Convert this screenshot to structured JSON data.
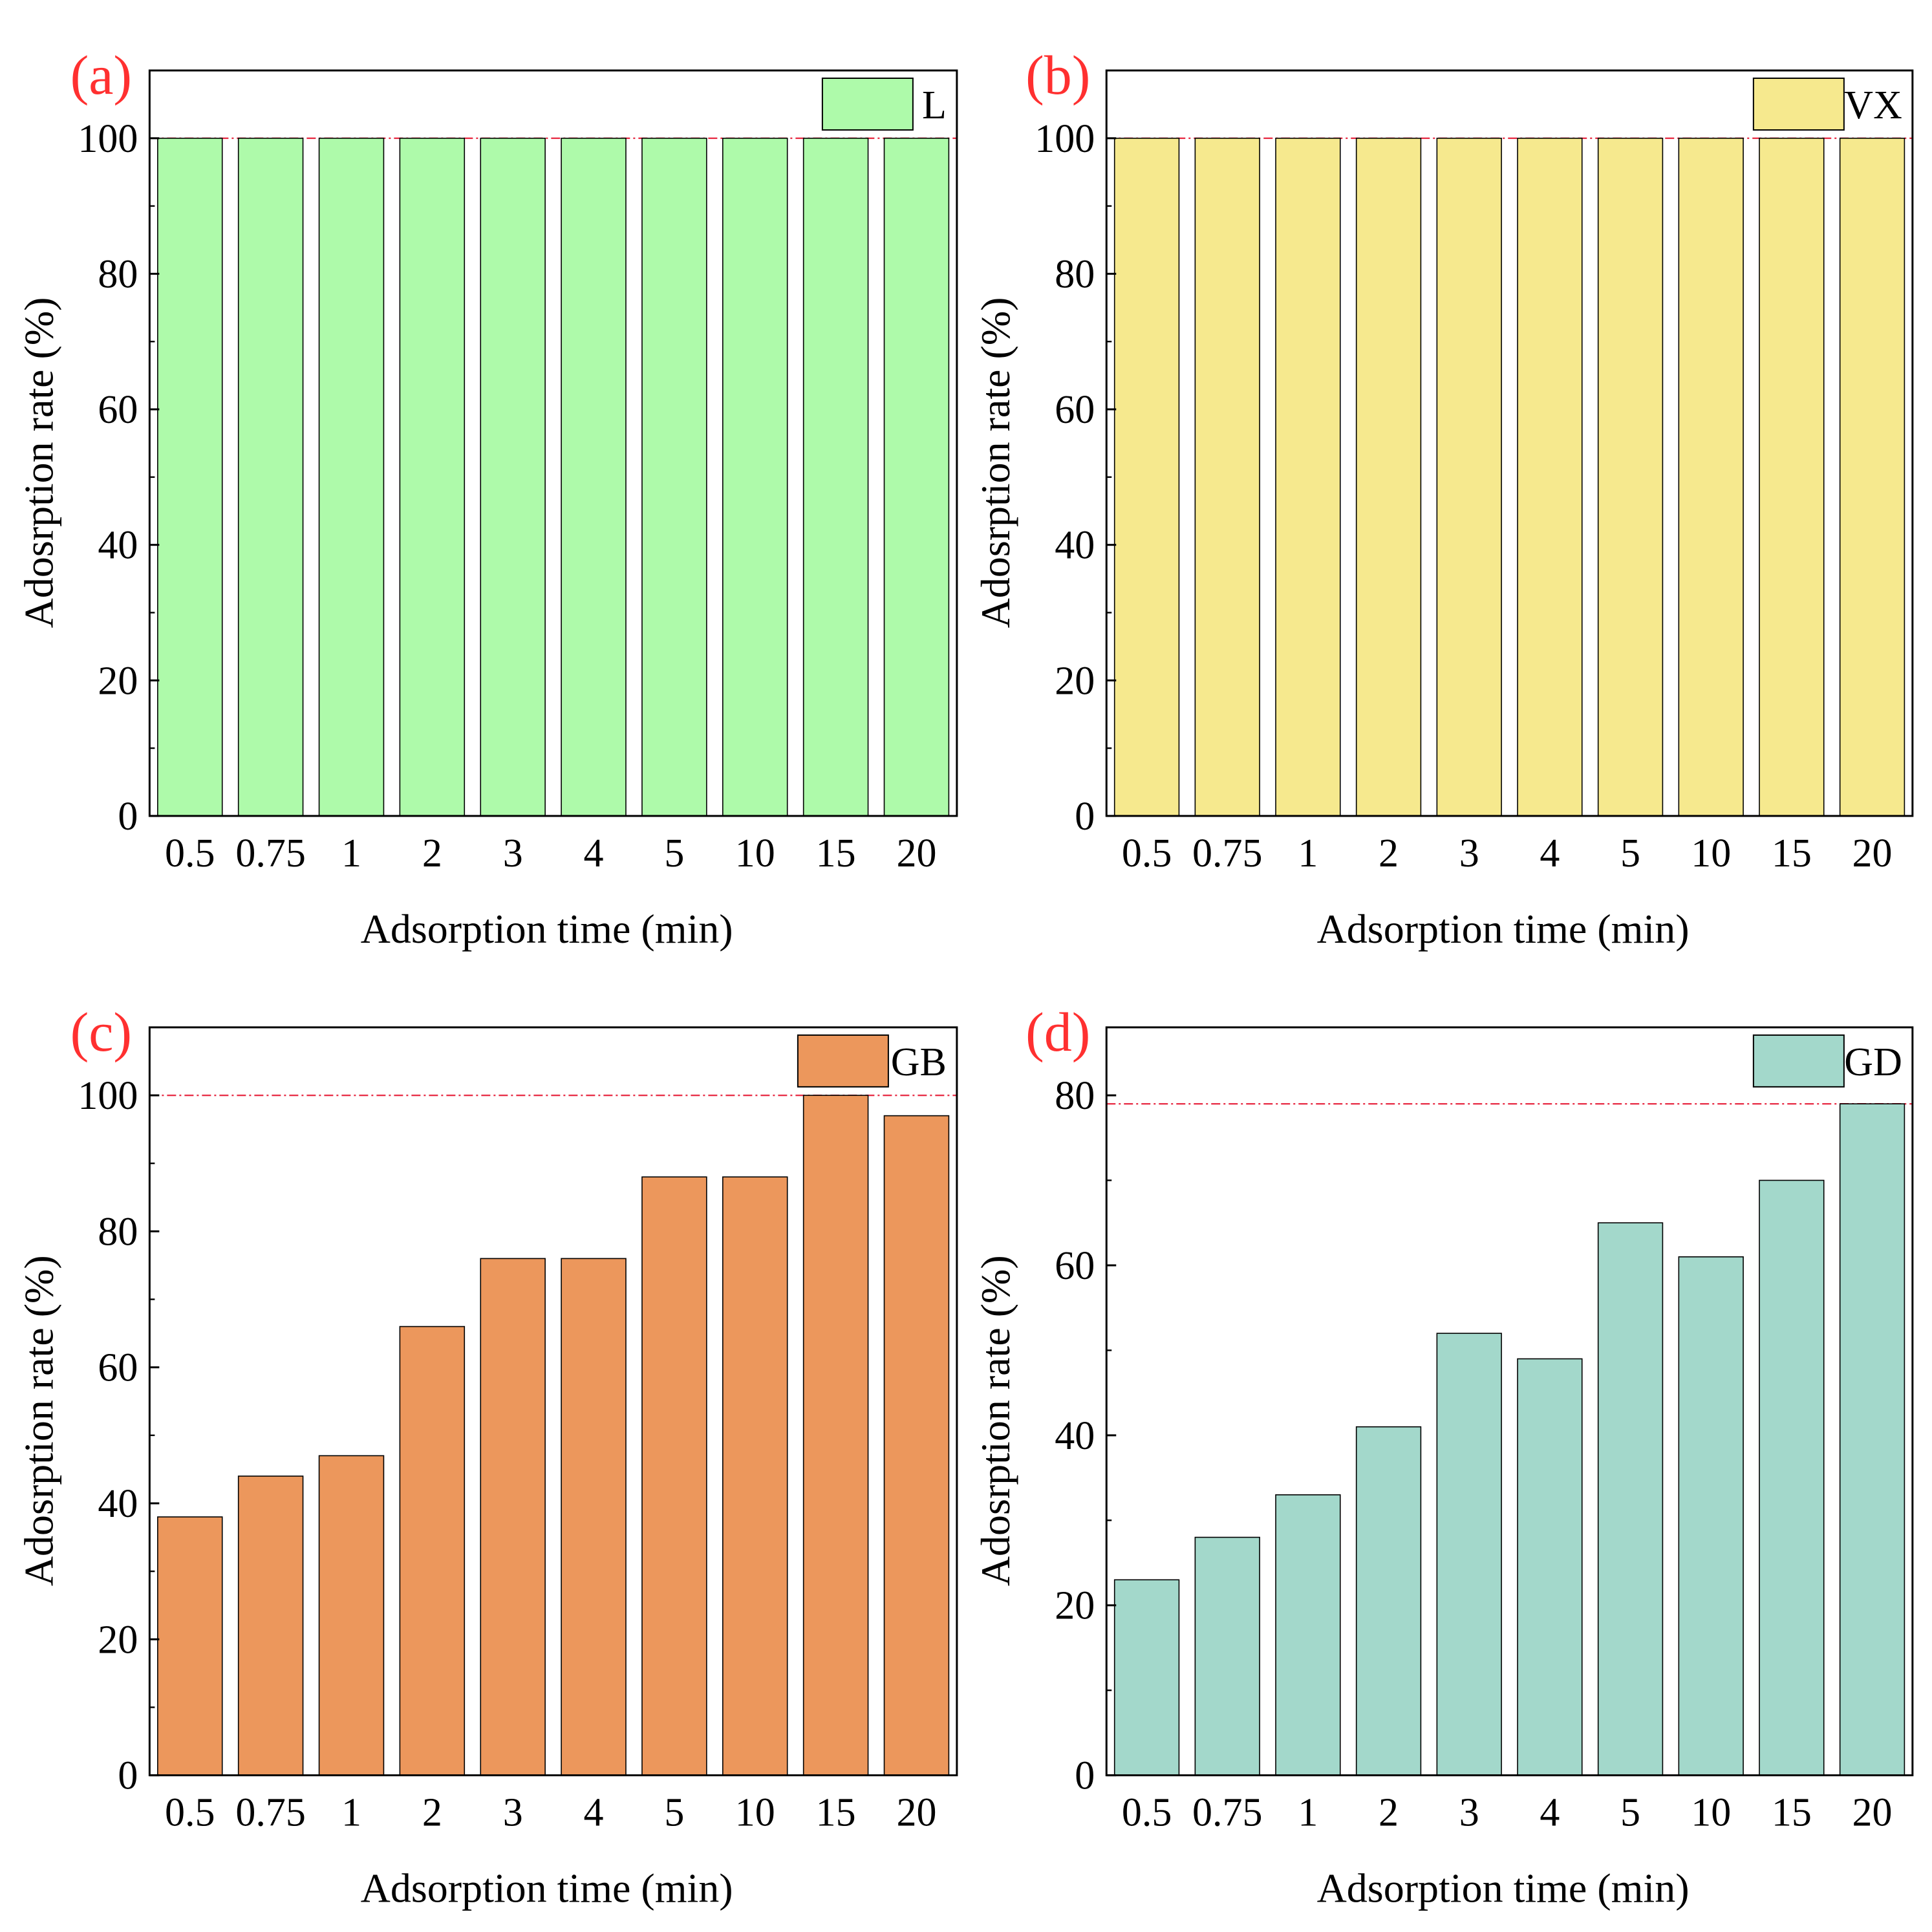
{
  "chart_data": [
    {
      "panel_label": "(a)",
      "type": "bar",
      "legend": "L",
      "legend_position": "top-right",
      "xlabel": "Adsorption time (min)",
      "ylabel": "Adosrption rate (%)",
      "categories": [
        "0.5",
        "0.75",
        "1",
        "2",
        "3",
        "4",
        "5",
        "10",
        "15",
        "20"
      ],
      "values": [
        100,
        100,
        100,
        100,
        100,
        100,
        100,
        100,
        100,
        100
      ],
      "ylim": [
        0,
        110
      ],
      "yticks": [
        "0",
        "20",
        "40",
        "60",
        "80",
        "100"
      ],
      "reference_line": 100,
      "color": "#aefaaa"
    },
    {
      "panel_label": "(b)",
      "type": "bar",
      "legend": "VX",
      "legend_position": "top-right",
      "xlabel": "Adsorption time (min)",
      "ylabel": "Adosrption rate (%)",
      "categories": [
        "0.5",
        "0.75",
        "1",
        "2",
        "3",
        "4",
        "5",
        "10",
        "15",
        "20"
      ],
      "values": [
        100,
        100,
        100,
        100,
        100,
        100,
        100,
        100,
        100,
        100
      ],
      "ylim": [
        0,
        110
      ],
      "yticks": [
        "0",
        "20",
        "40",
        "60",
        "80",
        "100"
      ],
      "reference_line": 100,
      "color": "#f6e98e"
    },
    {
      "panel_label": "(c)",
      "type": "bar",
      "legend": "GB",
      "legend_position": "top-right",
      "xlabel": "Adsorption time (min)",
      "ylabel": "Adosrption rate (%)",
      "categories": [
        "0.5",
        "0.75",
        "1",
        "2",
        "3",
        "4",
        "5",
        "10",
        "15",
        "20"
      ],
      "values": [
        38,
        44,
        47,
        66,
        76,
        76,
        88,
        88,
        100,
        97
      ],
      "ylim": [
        0,
        110
      ],
      "yticks": [
        "0",
        "20",
        "40",
        "60",
        "80",
        "100"
      ],
      "reference_line": 100,
      "color": "#ec975c"
    },
    {
      "panel_label": "(d)",
      "type": "bar",
      "legend": "GD",
      "legend_position": "top-right",
      "xlabel": "Adsorption time (min)",
      "ylabel": "Adosrption rate (%)",
      "categories": [
        "0.5",
        "0.75",
        "1",
        "2",
        "3",
        "4",
        "5",
        "10",
        "15",
        "20"
      ],
      "values": [
        23,
        28,
        33,
        41,
        52,
        49,
        65,
        61,
        70,
        79
      ],
      "ylim": [
        0,
        88
      ],
      "yticks": [
        "0",
        "20",
        "40",
        "60",
        "80"
      ],
      "reference_line": 79,
      "color": "#a3d8cb"
    }
  ],
  "colors": {
    "panel_label": "#ff3030",
    "reference_line": "#e8324a",
    "axis": "#000000"
  }
}
